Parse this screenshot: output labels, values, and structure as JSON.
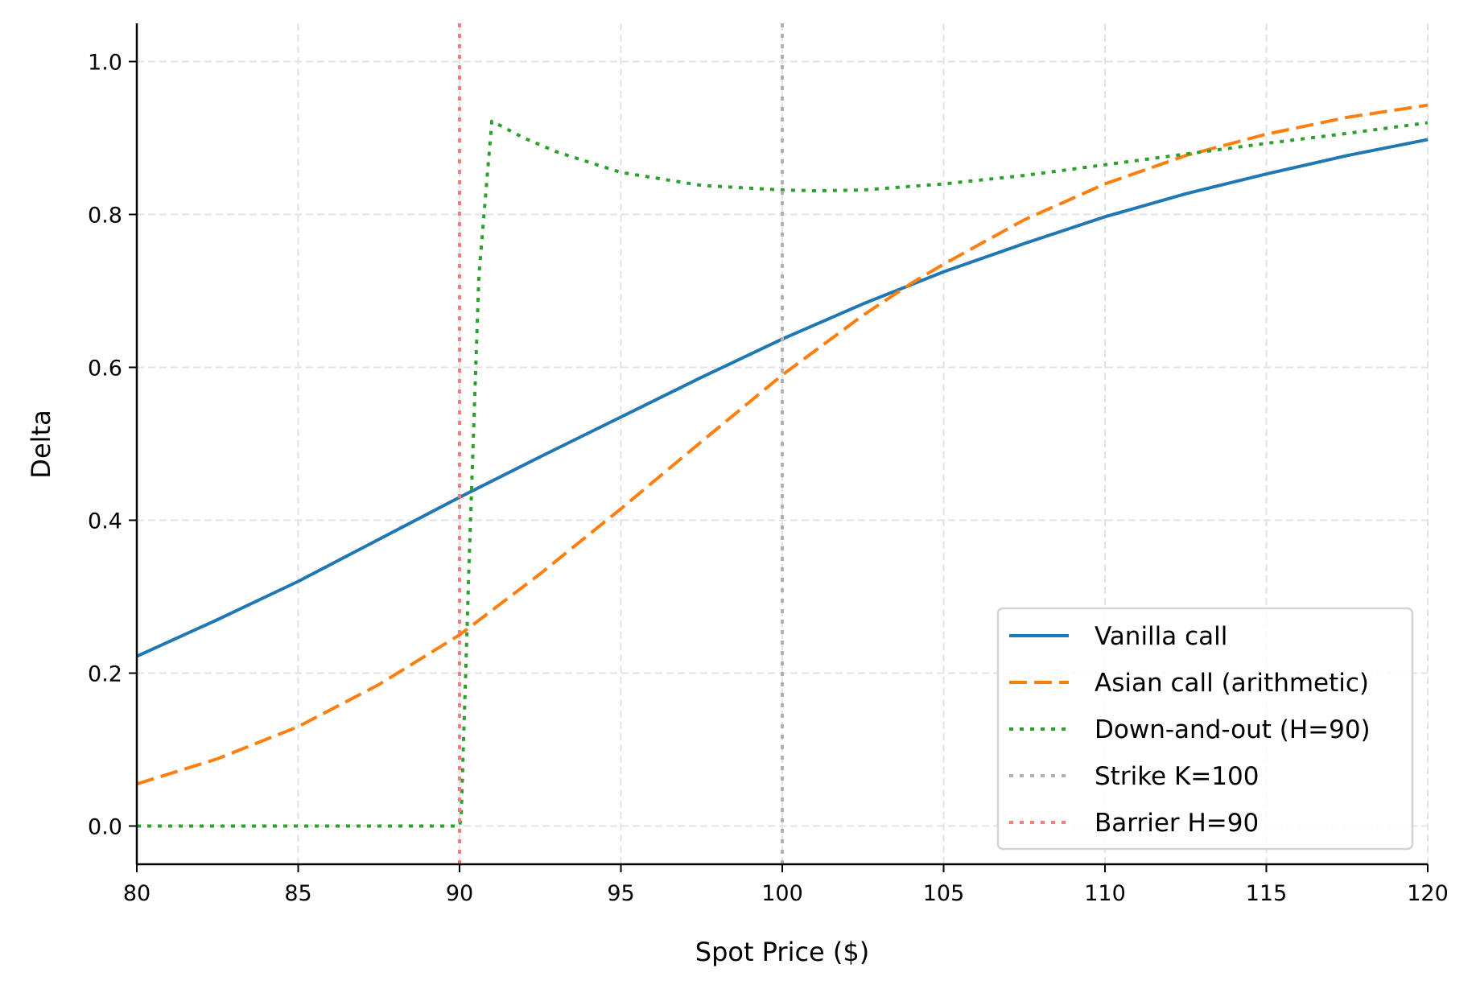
{
  "chart_data": {
    "type": "line",
    "title": "",
    "xlabel": "Spot Price ($)",
    "ylabel": "Delta",
    "xlim": [
      80,
      120
    ],
    "ylim": [
      -0.05,
      1.05
    ],
    "xticks": [
      80,
      85,
      90,
      95,
      100,
      105,
      110,
      115,
      120
    ],
    "yticks": [
      0.0,
      0.2,
      0.4,
      0.6,
      0.8,
      1.0
    ],
    "ytick_labels": [
      "0.0",
      "0.2",
      "0.4",
      "0.6",
      "0.8",
      "1.0"
    ],
    "grid": true,
    "legend_position": "lower-right",
    "series": [
      {
        "name": "Vanilla call",
        "style": "solid",
        "color": "#1f77b4",
        "x": [
          80,
          82.5,
          85,
          87.5,
          90,
          92.5,
          95,
          97.5,
          100,
          102.5,
          105,
          107.5,
          110,
          112.5,
          115,
          117.5,
          120
        ],
        "y": [
          0.222,
          0.27,
          0.32,
          0.375,
          0.43,
          0.483,
          0.535,
          0.587,
          0.637,
          0.683,
          0.725,
          0.762,
          0.797,
          0.827,
          0.853,
          0.877,
          0.898
        ]
      },
      {
        "name": "Asian call (arithmetic)",
        "style": "dashed",
        "color": "#ff7f0e",
        "x": [
          80,
          82.5,
          85,
          87.5,
          90,
          92.5,
          95,
          97.5,
          100,
          102.5,
          104,
          105,
          107.5,
          110,
          112.5,
          115,
          117.5,
          120
        ],
        "y": [
          0.055,
          0.088,
          0.13,
          0.185,
          0.25,
          0.33,
          0.415,
          0.503,
          0.59,
          0.668,
          0.71,
          0.735,
          0.793,
          0.84,
          0.877,
          0.905,
          0.927,
          0.943
        ]
      },
      {
        "name": "Down-and-out (H=90)",
        "style": "dotted",
        "color": "#2ca02c",
        "x": [
          80,
          85,
          90,
          90.05,
          90.3,
          90.6,
          91,
          92,
          93,
          95,
          97.5,
          100,
          101,
          102.5,
          105,
          107.5,
          110,
          112.5,
          115,
          117.5,
          120
        ],
        "y": [
          0,
          0,
          0,
          0.01,
          0.35,
          0.72,
          0.922,
          0.9,
          0.882,
          0.855,
          0.838,
          0.832,
          0.831,
          0.832,
          0.84,
          0.851,
          0.865,
          0.879,
          0.893,
          0.906,
          0.92
        ]
      },
      {
        "name": "Strike K=100",
        "style": "vline-dotted",
        "color": "#b0b0b0",
        "x_value": 100
      },
      {
        "name": "Barrier H=90",
        "style": "vline-dotted",
        "color": "#f87c7c",
        "x_value": 90
      }
    ]
  }
}
